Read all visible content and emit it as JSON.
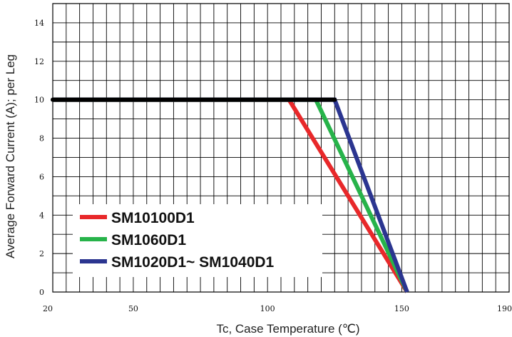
{
  "chart_data": {
    "type": "line",
    "xlabel": "Tc, Case Temperature (℃)",
    "ylabel": "Average Forward Current (A); per Leg",
    "xlim": [
      20,
      190
    ],
    "ylim": [
      0,
      15
    ],
    "x_ticks": [
      20,
      50,
      100,
      150,
      190
    ],
    "y_ticks": [
      0,
      2,
      4,
      6,
      8,
      10,
      12,
      14
    ],
    "grid": true,
    "legend_position": "bottom-left",
    "baseline": {
      "color": "#000000",
      "x": [
        20,
        125
      ],
      "y": [
        10,
        10
      ]
    },
    "series": [
      {
        "name": "SM10100D1",
        "color": "#e8282a",
        "x": [
          20,
          108,
          152
        ],
        "y": [
          10,
          10,
          0
        ]
      },
      {
        "name": "SM1060D1",
        "color": "#27b34a",
        "x": [
          20,
          118,
          152
        ],
        "y": [
          10,
          10,
          0
        ]
      },
      {
        "name": "SM1020D1~ SM1040D1",
        "color": "#2b3590",
        "x": [
          20,
          125,
          152
        ],
        "y": [
          10,
          10,
          0
        ]
      }
    ]
  }
}
